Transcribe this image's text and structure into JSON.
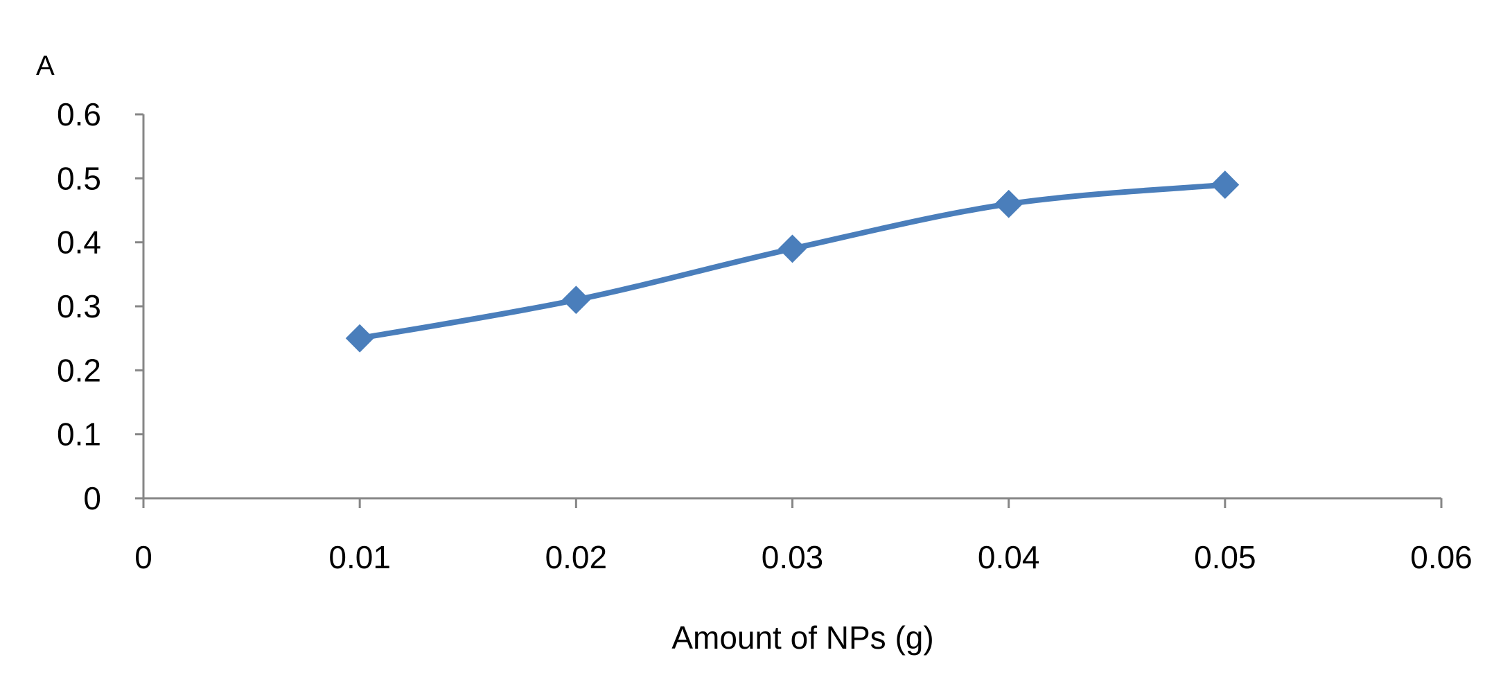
{
  "chart_data": {
    "type": "line",
    "title": "",
    "xlabel": "Amount of NPs (g)",
    "ylabel": "A",
    "xlim": [
      0,
      0.06
    ],
    "ylim": [
      0,
      0.6
    ],
    "x_ticks": [
      "0",
      "0.01",
      "0.02",
      "0.03",
      "0.04",
      "0.05",
      "0.06"
    ],
    "y_ticks": [
      "0",
      "0.1",
      "0.2",
      "0.3",
      "0.4",
      "0.5",
      "0.6"
    ],
    "grid": false,
    "legend": "none",
    "series": [
      {
        "color": "#4a7ebb",
        "marker": "diamond",
        "smooth": true,
        "x": [
          0.01,
          0.02,
          0.03,
          0.04,
          0.05
        ],
        "y": [
          0.25,
          0.31,
          0.39,
          0.46,
          0.49
        ]
      }
    ]
  }
}
